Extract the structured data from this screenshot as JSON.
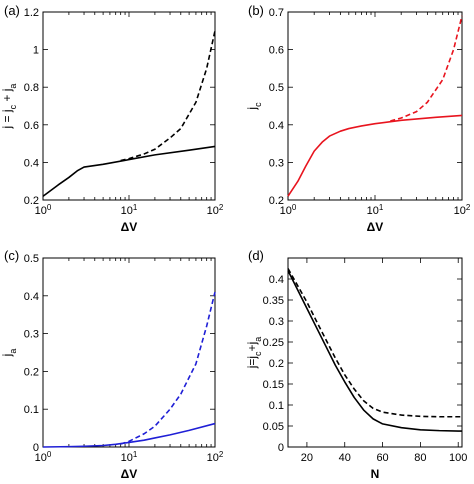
{
  "chart_data": [
    {
      "panel_label": "(a)",
      "type": "line",
      "xscale": "log",
      "xlim": [
        1,
        100
      ],
      "ylim": [
        0.2,
        1.2
      ],
      "xlabel": "ΔV",
      "ylabel": "j = j_c + j_a",
      "x_ticks": [
        {
          "v": 1,
          "base": "10",
          "exp": "0"
        },
        {
          "v": 10,
          "base": "10",
          "exp": "1"
        },
        {
          "v": 100,
          "base": "10",
          "exp": "2"
        }
      ],
      "y_ticks": [
        0.2,
        0.4,
        0.6,
        0.8,
        1.0,
        1.2
      ],
      "y_tick_labels": [
        "0.2",
        "0.4",
        "0.6",
        "0.8",
        "1",
        "1.2"
      ],
      "series": [
        {
          "style": "solid",
          "color": "#000000",
          "x": [
            1,
            1.5,
            2,
            2.5,
            3,
            5,
            10,
            20,
            50,
            100
          ],
          "y": [
            0.22,
            0.28,
            0.32,
            0.355,
            0.375,
            0.39,
            0.415,
            0.44,
            0.465,
            0.485
          ]
        },
        {
          "style": "dashed",
          "color": "#000000",
          "x": [
            8,
            10,
            15,
            20,
            30,
            40,
            60,
            80,
            100
          ],
          "y": [
            0.41,
            0.42,
            0.445,
            0.47,
            0.53,
            0.58,
            0.72,
            0.9,
            1.1
          ]
        }
      ]
    },
    {
      "panel_label": "(b)",
      "type": "line",
      "xscale": "log",
      "xlim": [
        1,
        100
      ],
      "ylim": [
        0.2,
        0.7
      ],
      "xlabel": "ΔV",
      "ylabel": "j_c",
      "x_ticks": [
        {
          "v": 1,
          "base": "10",
          "exp": "0"
        },
        {
          "v": 10,
          "base": "10",
          "exp": "1"
        },
        {
          "v": 100,
          "base": "10",
          "exp": "2"
        }
      ],
      "y_ticks": [
        0.2,
        0.3,
        0.4,
        0.5,
        0.6,
        0.7
      ],
      "y_tick_labels": [
        "0.2",
        "0.3",
        "0.4",
        "0.5",
        "0.6",
        "0.7"
      ],
      "series": [
        {
          "style": "solid",
          "color": "#e8141e",
          "x": [
            1,
            1.3,
            1.6,
            2,
            2.5,
            3,
            4,
            5,
            7,
            10,
            20,
            50,
            100
          ],
          "y": [
            0.21,
            0.25,
            0.29,
            0.33,
            0.355,
            0.37,
            0.383,
            0.39,
            0.397,
            0.403,
            0.412,
            0.42,
            0.425
          ]
        },
        {
          "style": "dashed",
          "color": "#e8141e",
          "x": [
            15,
            20,
            30,
            40,
            60,
            80,
            100
          ],
          "y": [
            0.41,
            0.418,
            0.435,
            0.46,
            0.52,
            0.6,
            0.69
          ]
        }
      ]
    },
    {
      "panel_label": "(c)",
      "type": "line",
      "xscale": "log",
      "xlim": [
        1,
        100
      ],
      "ylim": [
        0,
        0.5
      ],
      "xlabel": "ΔV",
      "ylabel": "j_a",
      "x_ticks": [
        {
          "v": 1,
          "base": "10",
          "exp": "0"
        },
        {
          "v": 10,
          "base": "10",
          "exp": "1"
        },
        {
          "v": 100,
          "base": "10",
          "exp": "2"
        }
      ],
      "y_ticks": [
        0,
        0.1,
        0.2,
        0.3,
        0.4,
        0.5
      ],
      "y_tick_labels": [
        "0",
        "0.1",
        "0.2",
        "0.3",
        "0.4",
        "0.5"
      ],
      "series": [
        {
          "style": "solid",
          "color": "#1f1fd6",
          "x": [
            1,
            2,
            3,
            5,
            7,
            10,
            15,
            20,
            30,
            50,
            100
          ],
          "y": [
            0,
            0.001,
            0.002,
            0.004,
            0.007,
            0.012,
            0.018,
            0.024,
            0.032,
            0.044,
            0.062
          ]
        },
        {
          "style": "dashed",
          "color": "#1f1fd6",
          "x": [
            8,
            10,
            15,
            20,
            30,
            40,
            60,
            80,
            100
          ],
          "y": [
            0.008,
            0.015,
            0.035,
            0.055,
            0.1,
            0.14,
            0.22,
            0.32,
            0.41
          ]
        }
      ]
    },
    {
      "panel_label": "(d)",
      "type": "line",
      "xscale": "linear",
      "xlim": [
        10,
        102
      ],
      "ylim": [
        0,
        0.45
      ],
      "xlabel": "N",
      "ylabel": "j=j_c+j_a",
      "x_ticks": [
        {
          "v": 20,
          "base": "20"
        },
        {
          "v": 40,
          "base": "40"
        },
        {
          "v": 60,
          "base": "60"
        },
        {
          "v": 80,
          "base": "80"
        },
        {
          "v": 100,
          "base": "100"
        }
      ],
      "y_ticks": [
        0,
        0.05,
        0.1,
        0.15,
        0.2,
        0.25,
        0.3,
        0.35,
        0.4
      ],
      "y_tick_labels": [
        "0",
        "0.05",
        "0.1",
        "0.15",
        "0.2",
        "0.25",
        "0.3",
        "0.35",
        "0.4"
      ],
      "series": [
        {
          "style": "solid",
          "color": "#000000",
          "x": [
            10,
            15,
            20,
            25,
            30,
            35,
            40,
            45,
            50,
            55,
            60,
            70,
            80,
            90,
            100,
            102
          ],
          "y": [
            0.42,
            0.375,
            0.33,
            0.285,
            0.24,
            0.195,
            0.155,
            0.118,
            0.088,
            0.067,
            0.055,
            0.046,
            0.041,
            0.039,
            0.038,
            0.038
          ]
        },
        {
          "style": "dashed",
          "color": "#000000",
          "x": [
            10,
            15,
            20,
            25,
            30,
            35,
            40,
            45,
            50,
            55,
            60,
            70,
            80,
            90,
            100,
            102
          ],
          "y": [
            0.425,
            0.385,
            0.345,
            0.3,
            0.256,
            0.212,
            0.172,
            0.138,
            0.11,
            0.092,
            0.083,
            0.076,
            0.073,
            0.072,
            0.072,
            0.072
          ]
        }
      ]
    }
  ]
}
